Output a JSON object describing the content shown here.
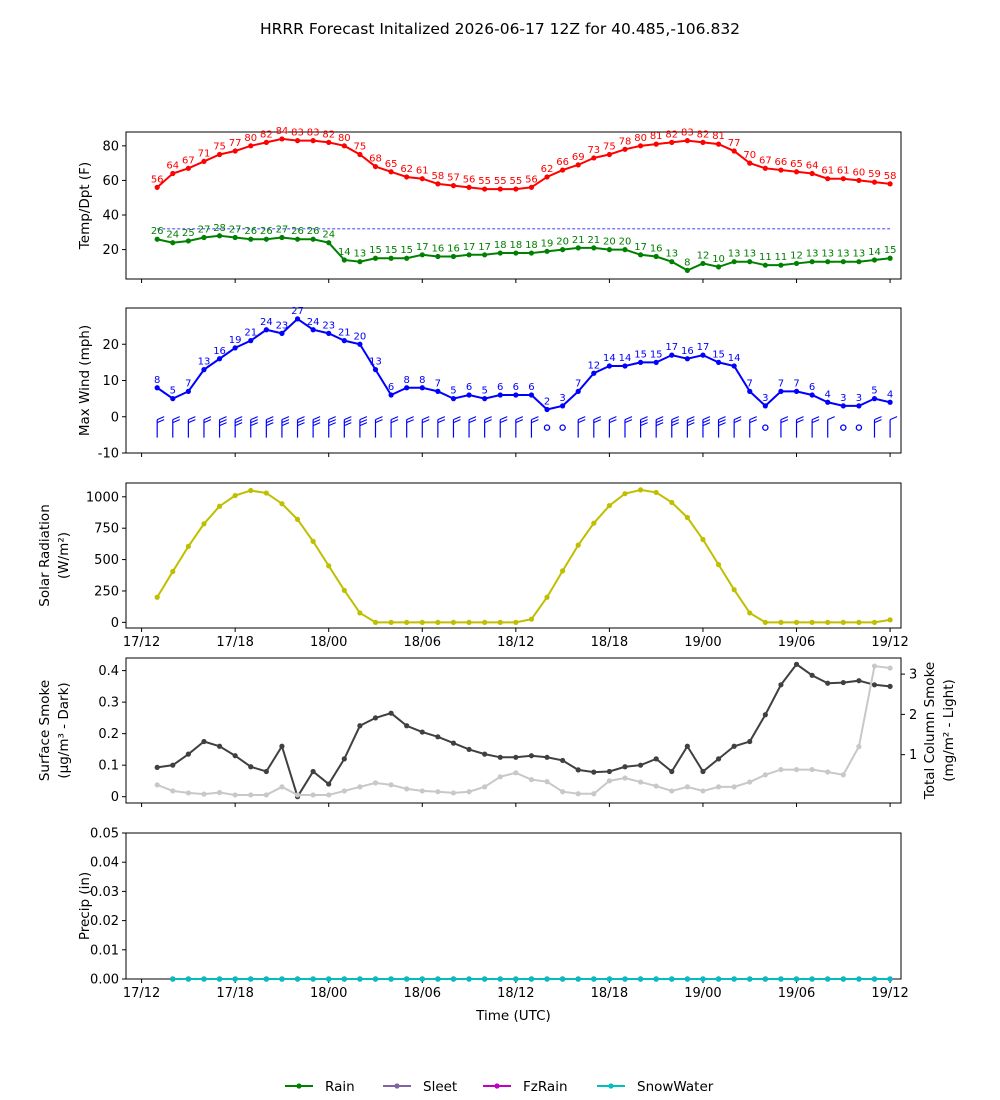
{
  "title": "HRRR Forecast Initalized 2026-06-17 12Z for 40.485,-106.832",
  "chart_data": [
    {
      "type": "line",
      "name": "temp-dewpoint",
      "ylabel": "Temp/Dpt (F)",
      "ylim": [
        3,
        88
      ],
      "yticks": [
        20,
        40,
        60,
        80
      ],
      "x": [
        1,
        2,
        3,
        4,
        5,
        6,
        7,
        8,
        9,
        10,
        11,
        12,
        13,
        14,
        15,
        16,
        17,
        18,
        19,
        20,
        21,
        22,
        23,
        24,
        25,
        26,
        27,
        28,
        29,
        30,
        31,
        32,
        33,
        34,
        35,
        36,
        37,
        38,
        39,
        40,
        41,
        42,
        43,
        44,
        45,
        46,
        47,
        48
      ],
      "series": [
        {
          "color": "#ff0000",
          "values": [
            56,
            64,
            67,
            71,
            75,
            77,
            80,
            82,
            84,
            83,
            83,
            82,
            80,
            75,
            68,
            65,
            62,
            61,
            58,
            57,
            56,
            55,
            55,
            55,
            56,
            62,
            66,
            69,
            73,
            75,
            78,
            80,
            81,
            82,
            83,
            82,
            81,
            77,
            70,
            67,
            66,
            65,
            64,
            61,
            61,
            60,
            59,
            58
          ]
        },
        {
          "color": "#008000",
          "values": [
            26,
            24,
            25,
            27,
            28,
            27,
            26,
            26,
            27,
            26,
            26,
            24,
            14,
            13,
            15,
            15,
            15,
            17,
            16,
            16,
            17,
            17,
            18,
            18,
            18,
            19,
            20,
            21,
            21,
            20,
            20,
            17,
            16,
            13,
            8,
            12,
            10,
            13,
            13,
            11,
            11,
            12,
            13,
            13,
            13,
            13,
            14,
            15
          ]
        }
      ],
      "reference_line": {
        "y": 32,
        "color": "#0000ff",
        "style": "dashed"
      }
    },
    {
      "type": "line",
      "name": "max-wind",
      "ylabel": "Max Wind (mph)",
      "ylim": [
        -10,
        30
      ],
      "yticks": [
        -10,
        0,
        10,
        20
      ],
      "x": [
        1,
        2,
        3,
        4,
        5,
        6,
        7,
        8,
        9,
        10,
        11,
        12,
        13,
        14,
        15,
        16,
        17,
        18,
        19,
        20,
        21,
        22,
        23,
        24,
        25,
        26,
        27,
        28,
        29,
        30,
        31,
        32,
        33,
        34,
        35,
        36,
        37,
        38,
        39,
        40,
        41,
        42,
        43,
        44,
        45,
        46,
        47,
        48
      ],
      "series": [
        {
          "color": "#0000ff",
          "values": [
            8,
            5,
            7,
            13,
            16,
            19,
            21,
            24,
            23,
            27,
            24,
            23,
            21,
            20,
            13,
            6,
            8,
            8,
            7,
            5,
            6,
            5,
            6,
            6,
            6,
            2,
            3,
            7,
            12,
            14,
            14,
            15,
            15,
            17,
            16,
            17,
            15,
            14,
            7,
            3,
            7,
            7,
            6,
            4,
            3,
            3,
            5,
            4
          ]
        }
      ],
      "wind_barbs": {
        "row_y": -3,
        "color": "#0000ff"
      }
    },
    {
      "type": "line",
      "name": "solar-radiation",
      "ylabel": "Solar Radiation\n(W/m²)",
      "ylim": [
        -45,
        1110
      ],
      "yticks": [
        0,
        250,
        500,
        750,
        1000
      ],
      "x": [
        1,
        2,
        3,
        4,
        5,
        6,
        7,
        8,
        9,
        10,
        11,
        12,
        13,
        14,
        15,
        16,
        17,
        18,
        19,
        20,
        21,
        22,
        23,
        24,
        25,
        26,
        27,
        28,
        29,
        30,
        31,
        32,
        33,
        34,
        35,
        36,
        37,
        38,
        39,
        40,
        41,
        42,
        43,
        44,
        45,
        46,
        47,
        48
      ],
      "series": [
        {
          "color": "#bfbf00",
          "values": [
            200,
            405,
            605,
            785,
            925,
            1010,
            1050,
            1030,
            945,
            820,
            645,
            450,
            255,
            75,
            0,
            0,
            0,
            0,
            0,
            0,
            0,
            0,
            0,
            0,
            25,
            200,
            410,
            615,
            790,
            930,
            1025,
            1055,
            1035,
            955,
            835,
            660,
            460,
            260,
            75,
            0,
            0,
            0,
            0,
            0,
            0,
            0,
            0,
            20
          ]
        }
      ]
    },
    {
      "type": "line",
      "name": "smoke",
      "ylabel": "Surface Smoke\n(μg/m³ - Dark)",
      "y2label": "Total Column Smoke\n(mg/m² - Light)",
      "ylim": [
        -0.02,
        0.44
      ],
      "yticks": [
        0.0,
        0.1,
        0.2,
        0.3,
        0.4
      ],
      "y2lim": [
        -0.2,
        3.4
      ],
      "y2ticks": [
        1,
        2,
        3
      ],
      "x": [
        1,
        2,
        3,
        4,
        5,
        6,
        7,
        8,
        9,
        10,
        11,
        12,
        13,
        14,
        15,
        16,
        17,
        18,
        19,
        20,
        21,
        22,
        23,
        24,
        25,
        26,
        27,
        28,
        29,
        30,
        31,
        32,
        33,
        34,
        35,
        36,
        37,
        38,
        39,
        40,
        41,
        42,
        43,
        44,
        45,
        46,
        47,
        48
      ],
      "series": [
        {
          "axis": "left",
          "color": "#404040",
          "values": [
            0.093,
            0.1,
            0.135,
            0.175,
            0.16,
            0.13,
            0.095,
            0.08,
            0.16,
            0.0,
            0.08,
            0.04,
            0.12,
            0.225,
            0.25,
            0.265,
            0.225,
            0.205,
            0.19,
            0.17,
            0.15,
            0.135,
            0.125,
            0.125,
            0.13,
            0.125,
            0.115,
            0.085,
            0.078,
            0.08,
            0.095,
            0.1,
            0.12,
            0.08,
            0.16,
            0.08,
            0.12,
            0.16,
            0.175,
            0.26,
            0.355,
            0.42,
            0.385,
            0.36,
            0.362,
            0.368,
            0.355,
            0.35
          ]
        },
        {
          "axis": "right",
          "color": "#c8c8c8",
          "values": [
            0.25,
            0.1,
            0.05,
            0.02,
            0.06,
            0.0,
            0.0,
            0.0,
            0.2,
            0.0,
            0.0,
            0.0,
            0.1,
            0.2,
            0.3,
            0.25,
            0.15,
            0.1,
            0.08,
            0.05,
            0.08,
            0.2,
            0.45,
            0.55,
            0.38,
            0.33,
            0.08,
            0.03,
            0.03,
            0.35,
            0.42,
            0.32,
            0.22,
            0.1,
            0.2,
            0.1,
            0.2,
            0.2,
            0.32,
            0.5,
            0.63,
            0.63,
            0.63,
            0.57,
            0.5,
            1.2,
            3.2,
            3.15
          ]
        }
      ]
    },
    {
      "type": "line",
      "name": "precip",
      "ylabel": "Precip (in)",
      "xlabel": "Time (UTC)",
      "ylim": [
        0,
        0.05
      ],
      "yticks": [
        "0.00",
        "0.01",
        "0.02",
        "0.03",
        "0.04",
        "0.05"
      ],
      "x": [
        2,
        3,
        4,
        5,
        6,
        7,
        8,
        9,
        10,
        11,
        12,
        13,
        14,
        15,
        16,
        17,
        18,
        19,
        20,
        21,
        22,
        23,
        24,
        25,
        26,
        27,
        28,
        29,
        30,
        31,
        32,
        33,
        34,
        35,
        36,
        37,
        38,
        39,
        40,
        41,
        42,
        43,
        44,
        45,
        46,
        47,
        48
      ],
      "series": [
        {
          "name": "Rain",
          "color": "#008000",
          "constant": 0
        },
        {
          "name": "Sleet",
          "color": "#8064a2",
          "constant": 0
        },
        {
          "name": "FzRain",
          "color": "#c000c0",
          "constant": 0
        },
        {
          "name": "SnowWater",
          "color": "#00bfbf",
          "constant": 0
        }
      ]
    }
  ],
  "x_axis": {
    "ticks": [
      {
        "x": 0,
        "label": "17/12"
      },
      {
        "x": 6,
        "label": "17/18"
      },
      {
        "x": 12,
        "label": "18/00"
      },
      {
        "x": 18,
        "label": "18/06"
      },
      {
        "x": 24,
        "label": "18/12"
      },
      {
        "x": 30,
        "label": "18/18"
      },
      {
        "x": 36,
        "label": "19/00"
      },
      {
        "x": 42,
        "label": "19/06"
      },
      {
        "x": 48,
        "label": "19/12"
      }
    ],
    "range": [
      -1,
      48.7
    ]
  },
  "legend": {
    "placement": "bottom-center",
    "entries": [
      {
        "label": "Rain",
        "color": "#008000"
      },
      {
        "label": "Sleet",
        "color": "#8064a2"
      },
      {
        "label": "FzRain",
        "color": "#c000c0"
      },
      {
        "label": "SnowWater",
        "color": "#00bfbf"
      }
    ]
  }
}
